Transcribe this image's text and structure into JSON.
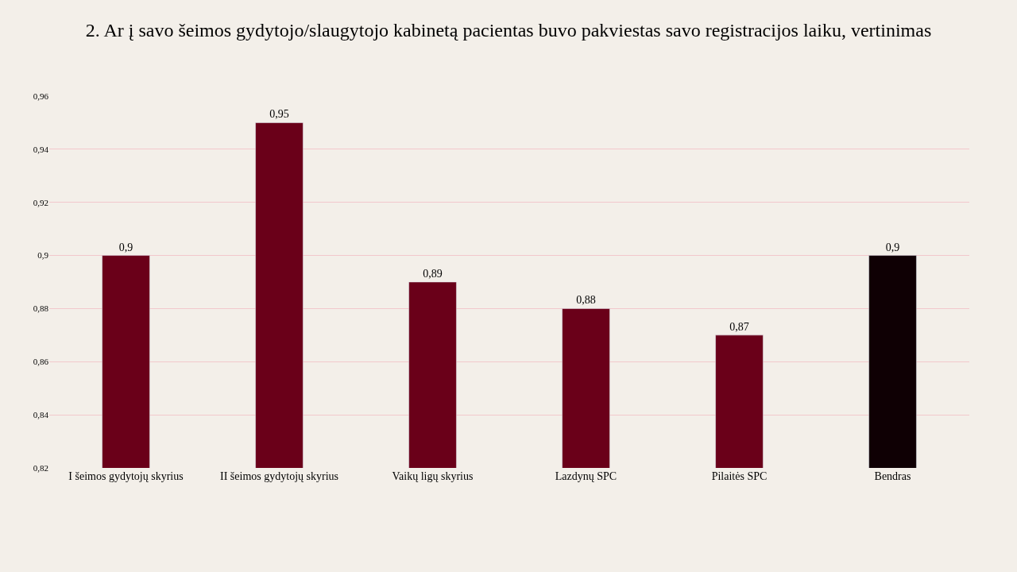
{
  "chart_data": {
    "type": "bar",
    "title": "2. Ar į savo šeimos gydytojo/slaugytojo kabinetą pacientas buvo pakviestas savo registracijos laiku, vertinimas",
    "categories": [
      "I šeimos gydytojų skyrius",
      "II šeimos gydytojų skyrius",
      "Vaikų ligų skyrius",
      "Lazdynų SPC",
      "Pilaitės SPC",
      "Bendras"
    ],
    "values": [
      0.9,
      0.95,
      0.89,
      0.88,
      0.87,
      0.9
    ],
    "colors": [
      "#6a0019",
      "#6a0019",
      "#6a0019",
      "#6a0019",
      "#6a0019",
      "#0f0004"
    ],
    "value_labels": [
      "0,9",
      "0,95",
      "0,89",
      "0,88",
      "0,87",
      "0,9"
    ],
    "ylim": [
      0.82,
      0.96
    ],
    "yticks": [
      {
        "value": 0.82,
        "label": "0,82"
      },
      {
        "value": 0.84,
        "label": "0,84"
      },
      {
        "value": 0.86,
        "label": "0,86"
      },
      {
        "value": 0.88,
        "label": "0,88"
      },
      {
        "value": 0.9,
        "label": "0,9"
      },
      {
        "value": 0.92,
        "label": "0,92"
      },
      {
        "value": 0.94,
        "label": "0,94"
      },
      {
        "value": 0.96,
        "label": "0,96"
      }
    ],
    "grid": "y",
    "legend": false
  }
}
